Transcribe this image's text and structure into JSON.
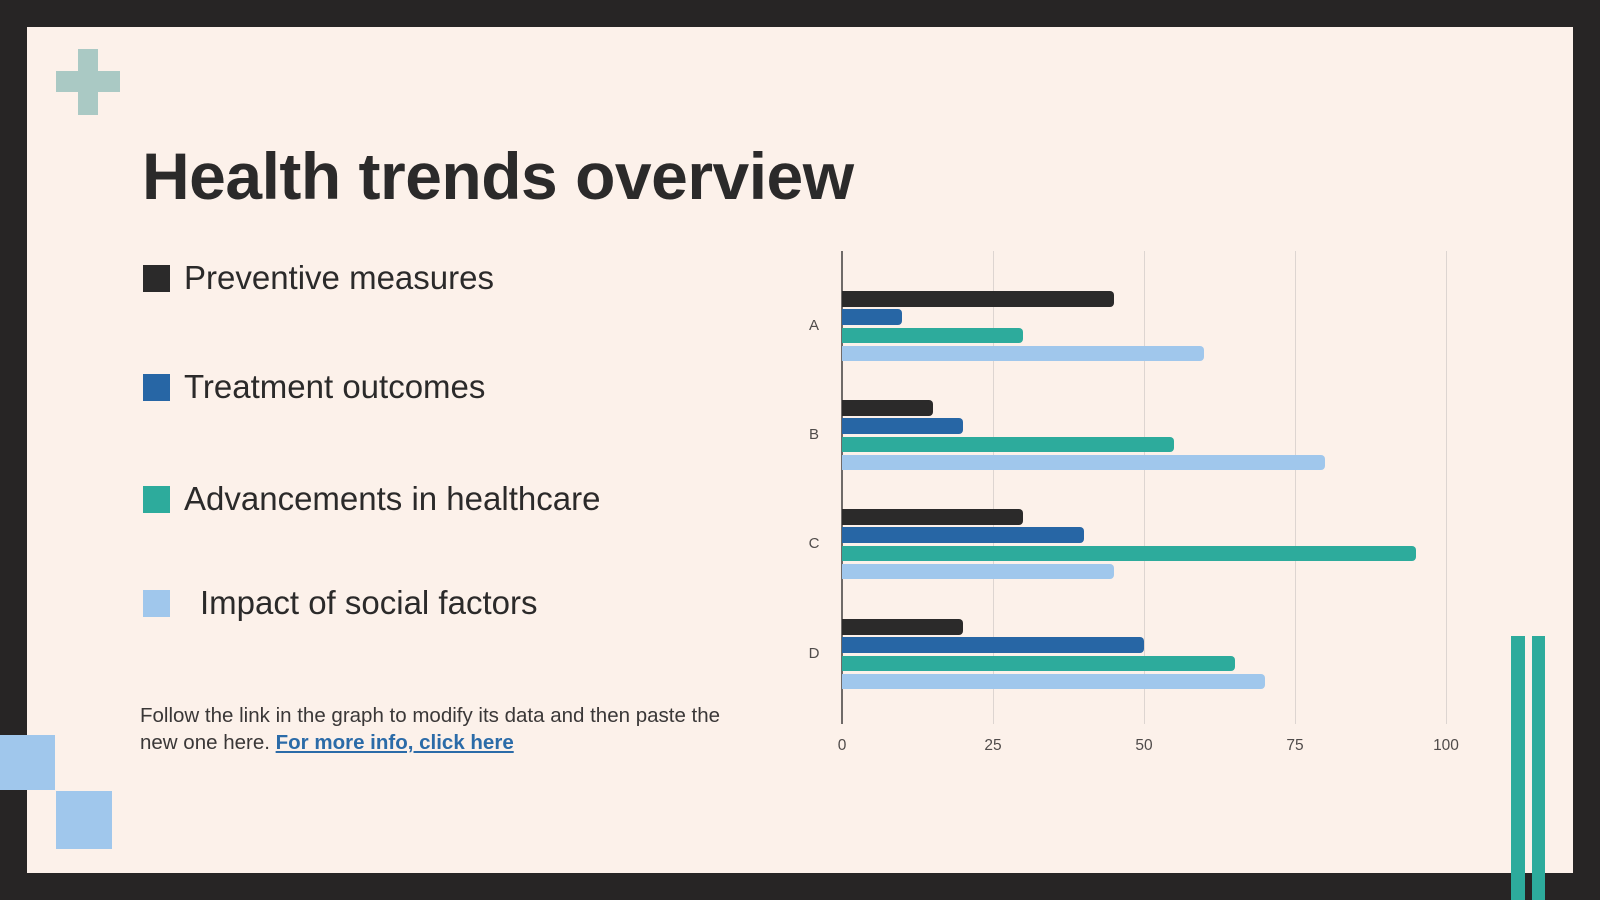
{
  "slide": {
    "title": "Health trends overview",
    "footer_text": "Follow the link in the graph to modify its data and then paste the new one here. ",
    "footer_link_label": "For more info, click here"
  },
  "colors": {
    "frame": "#272525",
    "slide_background": "#fcf1ea",
    "title_text": "#2b2a2a",
    "link_blue": "#2b6ba8",
    "decoration_cross_sage": "#aac9c4",
    "decoration_square_blue": "#a0c7ec",
    "decoration_bar_teal": "#2dab9c",
    "gridline": "#ddd5d1",
    "axis_line": "#6f6a68",
    "axis_text": "#4f4b4a"
  },
  "chart_data": {
    "type": "bar",
    "orientation": "horizontal",
    "title": "",
    "xlabel": "",
    "ylabel": "",
    "categories": [
      "A",
      "B",
      "C",
      "D"
    ],
    "series": [
      {
        "name": "Preventive measures",
        "color": "#2b2a2a",
        "values": [
          45,
          15,
          30,
          20
        ]
      },
      {
        "name": "Treatment outcomes",
        "color": "#2766a5",
        "values": [
          10,
          20,
          40,
          50
        ]
      },
      {
        "name": "Advancements in healthcare",
        "color": "#2dab9c",
        "values": [
          30,
          55,
          95,
          65
        ]
      },
      {
        "name": "Impact of social factors",
        "color": "#a0c7ec",
        "values": [
          60,
          80,
          45,
          70
        ]
      }
    ],
    "x_ticks": [
      0,
      25,
      50,
      75,
      100
    ],
    "xlim": [
      0,
      100
    ],
    "grid": true,
    "legend_position": "left"
  }
}
